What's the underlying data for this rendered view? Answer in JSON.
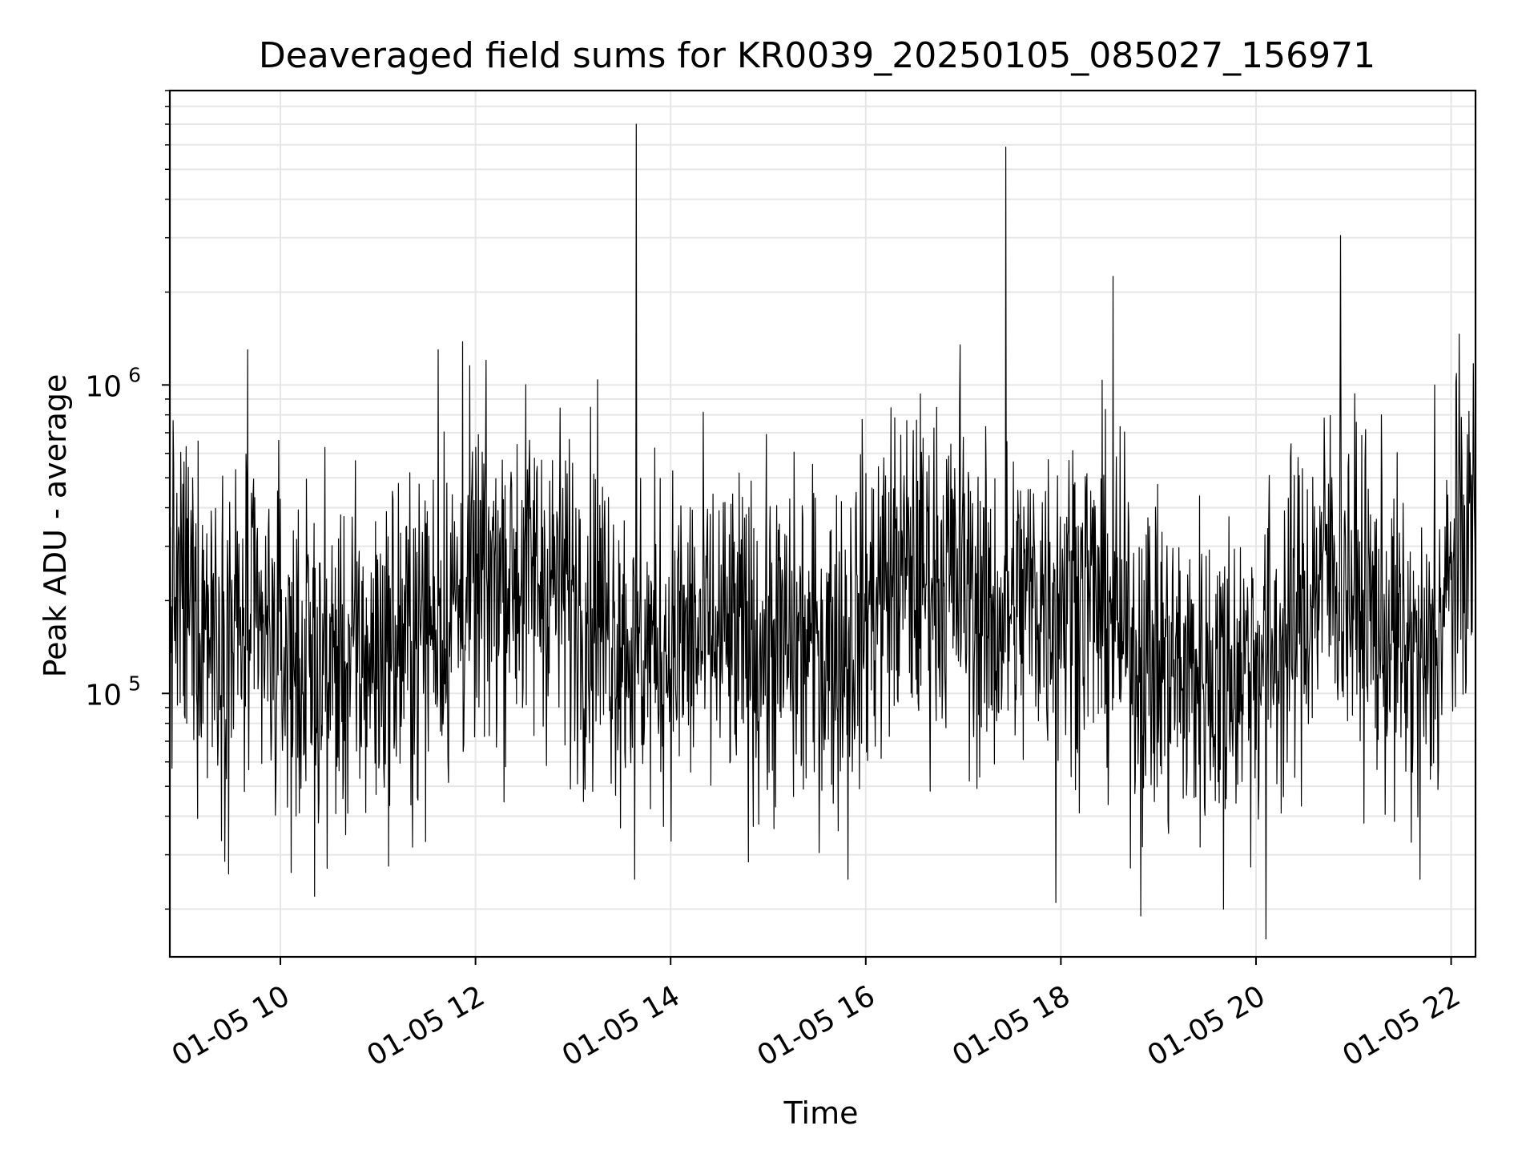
{
  "chart_data": {
    "type": "line",
    "title": "Deaveraged field sums for KR0039_20250105_085027_156971",
    "xlabel": "Time",
    "ylabel": "Peak ADU - average",
    "x_axis": {
      "scale": "time",
      "start": "2025-01-05 08:52",
      "end": "2025-01-05 22:15",
      "ticks": [
        "2025-01-05 10:00",
        "2025-01-05 12:00",
        "2025-01-05 14:00",
        "2025-01-05 16:00",
        "2025-01-05 18:00",
        "2025-01-05 20:00",
        "2025-01-05 22:00"
      ],
      "tick_labels": [
        "01-05 10",
        "01-05 12",
        "01-05 14",
        "01-05 16",
        "01-05 18",
        "01-05 20",
        "01-05 22"
      ],
      "tick_label_rotation_deg": 30
    },
    "y_axis": {
      "scale": "log",
      "ylim": [
        14000,
        9000000
      ],
      "major_ticks": [
        100000,
        1000000
      ],
      "major_tick_labels": [
        {
          "base": "10",
          "exp": "5"
        },
        {
          "base": "10",
          "exp": "6"
        }
      ]
    },
    "grid": true,
    "grid_color": "#e6e6e6",
    "line_color": "#000000",
    "series": [
      {
        "samples_count": 2400,
        "baseline": [
          [
            "2025-01-05 08:52",
            210000
          ],
          [
            "2025-01-05 09:15",
            180000
          ],
          [
            "2025-01-05 09:45",
            150000
          ],
          [
            "2025-01-05 10:15",
            120000
          ],
          [
            "2025-01-05 10:45",
            125000
          ],
          [
            "2025-01-05 11:15",
            145000
          ],
          [
            "2025-01-05 11:45",
            190000
          ],
          [
            "2025-01-05 12:15",
            250000
          ],
          [
            "2025-01-05 12:45",
            240000
          ],
          [
            "2025-01-05 13:15",
            180000
          ],
          [
            "2025-01-05 13:45",
            140000
          ],
          [
            "2025-01-05 14:15",
            150000
          ],
          [
            "2025-01-05 14:45",
            145000
          ],
          [
            "2025-01-05 15:15",
            140000
          ],
          [
            "2025-01-05 15:45",
            145000
          ],
          [
            "2025-01-05 16:15",
            240000
          ],
          [
            "2025-01-05 16:45",
            250000
          ],
          [
            "2025-01-05 17:00",
            230000
          ],
          [
            "2025-01-05 17:15",
            170000
          ],
          [
            "2025-01-05 17:45",
            210000
          ],
          [
            "2025-01-05 18:15",
            220000
          ],
          [
            "2025-01-05 18:45",
            140000
          ],
          [
            "2025-01-05 19:15",
            115000
          ],
          [
            "2025-01-05 19:45",
            120000
          ],
          [
            "2025-01-05 20:15",
            140000
          ],
          [
            "2025-01-05 20:45",
            270000
          ],
          [
            "2025-01-05 21:15",
            170000
          ],
          [
            "2025-01-05 21:45",
            110000
          ],
          [
            "2025-01-05 22:00",
            230000
          ],
          [
            "2025-01-05 22:15",
            380000
          ]
        ],
        "peaks": [
          [
            "2025-01-05 09:40",
            1300000
          ],
          [
            "2025-01-05 11:37",
            1300000
          ],
          [
            "2025-01-05 11:52",
            1380000
          ],
          [
            "2025-01-05 13:15",
            1040000
          ],
          [
            "2025-01-05 13:39",
            7000000
          ],
          [
            "2025-01-05 16:58",
            1350000
          ],
          [
            "2025-01-05 17:26",
            5900000
          ],
          [
            "2025-01-05 18:32",
            2250000
          ],
          [
            "2025-01-05 20:52",
            3050000
          ],
          [
            "2025-01-05 21:50",
            1000000
          ],
          [
            "2025-01-05 22:03",
            1020000
          ]
        ],
        "troughs": [
          [
            "2025-01-05 09:28",
            26000
          ],
          [
            "2025-01-05 10:21",
            22000
          ],
          [
            "2025-01-05 13:38",
            25000
          ],
          [
            "2025-01-05 15:49",
            25000
          ],
          [
            "2025-01-05 17:57",
            21000
          ],
          [
            "2025-01-05 18:49",
            19000
          ],
          [
            "2025-01-05 19:40",
            20000
          ],
          [
            "2025-01-05 20:06",
            16000
          ],
          [
            "2025-01-05 21:41",
            25000
          ]
        ]
      }
    ]
  }
}
